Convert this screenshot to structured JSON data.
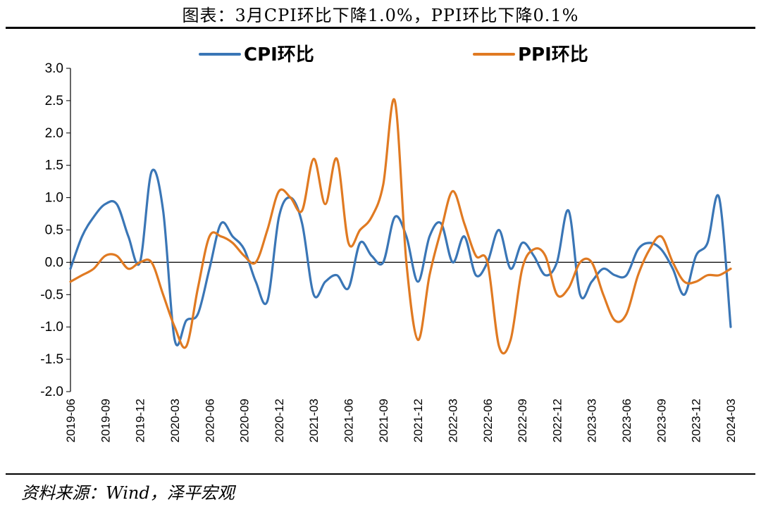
{
  "title": "图表：3月CPI环比下降1.0%，PPI环比下降0.1%",
  "source": "资料来源：Wind，泽平宏观",
  "chart_data": {
    "type": "line",
    "title": "图表：3月CPI环比下降1.0%，PPI环比下降0.1%",
    "xlabel": "",
    "ylabel": "",
    "ylim": [
      -2.0,
      3.0
    ],
    "yticks": [
      "3.0",
      "2.5",
      "2.0",
      "1.5",
      "1.0",
      "0.5",
      "0.0",
      "-0.5",
      "-1.0",
      "-1.5",
      "-2.0"
    ],
    "xtick_labels": [
      "2019-06",
      "2019-09",
      "2019-12",
      "2020-03",
      "2020-06",
      "2020-09",
      "2020-12",
      "2021-03",
      "2021-06",
      "2021-09",
      "2021-12",
      "2022-03",
      "2022-06",
      "2022-09",
      "2022-12",
      "2023-03",
      "2023-06",
      "2023-09",
      "2023-12",
      "2024-03"
    ],
    "legend_position": "top",
    "grid": false,
    "x": [
      "2019-06",
      "2019-07",
      "2019-08",
      "2019-09",
      "2019-10",
      "2019-11",
      "2019-12",
      "2020-01",
      "2020-02",
      "2020-03",
      "2020-04",
      "2020-05",
      "2020-06",
      "2020-07",
      "2020-08",
      "2020-09",
      "2020-10",
      "2020-11",
      "2020-12",
      "2021-01",
      "2021-02",
      "2021-03",
      "2021-04",
      "2021-05",
      "2021-06",
      "2021-07",
      "2021-08",
      "2021-09",
      "2021-10",
      "2021-11",
      "2021-12",
      "2022-01",
      "2022-02",
      "2022-03",
      "2022-04",
      "2022-05",
      "2022-06",
      "2022-07",
      "2022-08",
      "2022-09",
      "2022-10",
      "2022-11",
      "2022-12",
      "2023-01",
      "2023-02",
      "2023-03",
      "2023-04",
      "2023-05",
      "2023-06",
      "2023-07",
      "2023-08",
      "2023-09",
      "2023-10",
      "2023-11",
      "2023-12",
      "2024-01",
      "2024-02",
      "2024-03"
    ],
    "series": [
      {
        "name": "CPI环比",
        "color": "#3A76B6",
        "values": [
          -0.1,
          0.4,
          0.7,
          0.9,
          0.9,
          0.4,
          0.0,
          1.4,
          0.8,
          -1.2,
          -0.9,
          -0.8,
          -0.1,
          0.6,
          0.4,
          0.2,
          -0.3,
          -0.6,
          0.7,
          1.0,
          0.6,
          -0.5,
          -0.3,
          -0.2,
          -0.4,
          0.3,
          0.1,
          0.0,
          0.7,
          0.4,
          -0.3,
          0.4,
          0.6,
          0.0,
          0.4,
          -0.2,
          0.0,
          0.5,
          -0.1,
          0.3,
          0.1,
          -0.2,
          0.0,
          0.8,
          -0.5,
          -0.3,
          -0.1,
          -0.2,
          -0.2,
          0.2,
          0.3,
          0.2,
          -0.1,
          -0.5,
          0.1,
          0.3,
          1.0,
          -1.0
        ]
      },
      {
        "name": "PPI环比",
        "color": "#E07A22",
        "values": [
          -0.3,
          -0.2,
          -0.1,
          0.1,
          0.1,
          -0.1,
          0.0,
          0.0,
          -0.5,
          -1.0,
          -1.3,
          -0.4,
          0.4,
          0.4,
          0.3,
          0.1,
          0.0,
          0.5,
          1.1,
          1.0,
          0.8,
          1.6,
          0.9,
          1.6,
          0.3,
          0.5,
          0.7,
          1.2,
          2.5,
          0.0,
          -1.2,
          -0.2,
          0.5,
          1.1,
          0.6,
          0.1,
          0.0,
          -1.3,
          -1.2,
          -0.1,
          0.2,
          0.1,
          -0.5,
          -0.4,
          0.0,
          0.0,
          -0.5,
          -0.9,
          -0.8,
          -0.2,
          0.2,
          0.4,
          0.0,
          -0.3,
          -0.3,
          -0.2,
          -0.2,
          -0.1
        ]
      }
    ]
  }
}
